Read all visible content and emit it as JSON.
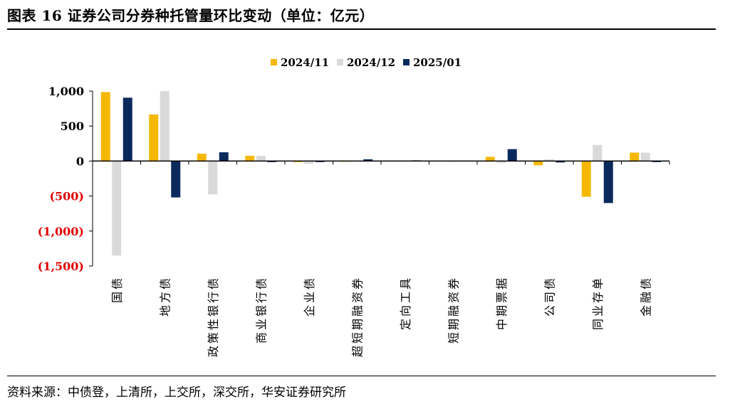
{
  "title": "图表 16  证券公司分券种托管量环比变动（单位：亿元）",
  "source": "资料来源：中债登，上清所，上交所，深交所，华安证券研究所",
  "colors": {
    "series_2024_11": "#f5b800",
    "series_2024_12": "#d9d9d9",
    "series_2025_01": "#0b2a5b",
    "negative_tick": "#e00000"
  },
  "chart_data": {
    "type": "bar",
    "title": "",
    "xlabel": "",
    "ylabel": "",
    "ylim": [
      -1500,
      1000
    ],
    "yticks": [
      1000,
      500,
      0,
      -500,
      -1000,
      -1500
    ],
    "ytick_labels": [
      "1,000",
      "500",
      "0",
      "(500)",
      "(1,000)",
      "(1,500)"
    ],
    "legend_position": "top-center",
    "grid": false,
    "categories": [
      "国债",
      "地方债",
      "政策性银行债",
      "商业银行债",
      "企业债",
      "超短期融资券",
      "定向工具",
      "短期融资券",
      "中期票据",
      "公司债",
      "同业存单",
      "金融债"
    ],
    "series": [
      {
        "name": "2024/11",
        "values": [
          985,
          665,
          105,
          75,
          -15,
          -10,
          5,
          -5,
          60,
          -60,
          -510,
          120
        ]
      },
      {
        "name": "2024/12",
        "values": [
          -1350,
          1000,
          -475,
          75,
          -40,
          -5,
          5,
          -10,
          -30,
          25,
          230,
          120
        ]
      },
      {
        "name": "2025/01",
        "values": [
          905,
          -520,
          125,
          -15,
          -15,
          25,
          10,
          5,
          170,
          -20,
          -600,
          -15
        ]
      }
    ]
  }
}
